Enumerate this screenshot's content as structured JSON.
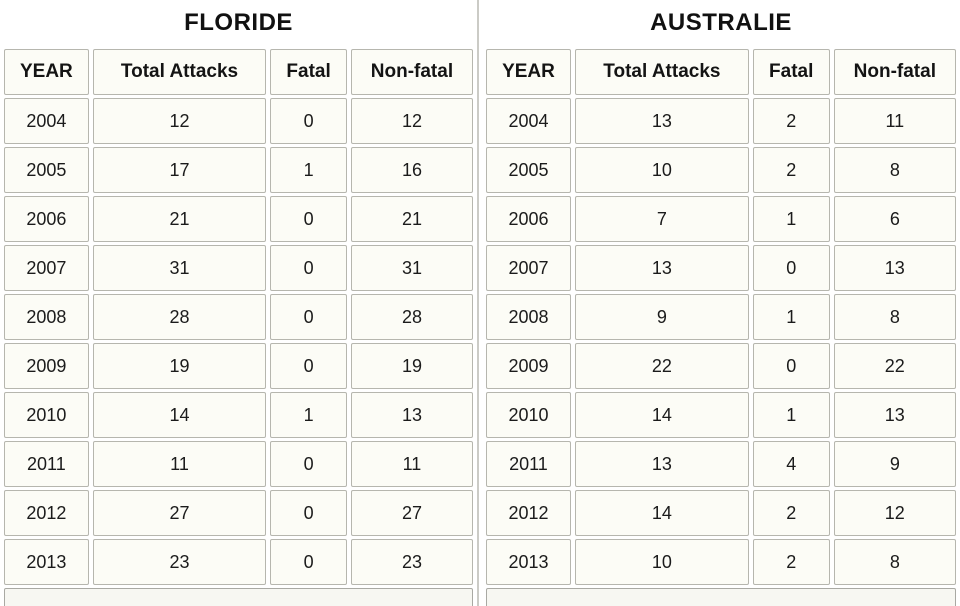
{
  "chart_data": [
    {
      "type": "table",
      "title": "FLORIDE",
      "columns": [
        "YEAR",
        "Total Attacks",
        "Fatal",
        "Non-fatal"
      ],
      "rows": [
        [
          "2004",
          "12",
          "0",
          "12"
        ],
        [
          "2005",
          "17",
          "1",
          "16"
        ],
        [
          "2006",
          "21",
          "0",
          "21"
        ],
        [
          "2007",
          "31",
          "0",
          "31"
        ],
        [
          "2008",
          "28",
          "0",
          "28"
        ],
        [
          "2009",
          "19",
          "0",
          "19"
        ],
        [
          "2010",
          "14",
          "1",
          "13"
        ],
        [
          "2011",
          "11",
          "0",
          "11"
        ],
        [
          "2012",
          "27",
          "0",
          "27"
        ],
        [
          "2013",
          "23",
          "0",
          "23"
        ]
      ]
    },
    {
      "type": "table",
      "title": "AUSTRALIE",
      "columns": [
        "YEAR",
        "Total Attacks",
        "Fatal",
        "Non-fatal"
      ],
      "rows": [
        [
          "2004",
          "13",
          "2",
          "11"
        ],
        [
          "2005",
          "10",
          "2",
          "8"
        ],
        [
          "2006",
          "7",
          "1",
          "6"
        ],
        [
          "2007",
          "13",
          "0",
          "13"
        ],
        [
          "2008",
          "9",
          "1",
          "8"
        ],
        [
          "2009",
          "22",
          "0",
          "22"
        ],
        [
          "2010",
          "14",
          "1",
          "13"
        ],
        [
          "2011",
          "13",
          "4",
          "9"
        ],
        [
          "2012",
          "14",
          "2",
          "12"
        ],
        [
          "2013",
          "10",
          "2",
          "8"
        ]
      ]
    }
  ],
  "colors": {
    "cell_border": "#b6b6ae",
    "cell_background": "#fcfcf6",
    "divider": "#cbcbc6",
    "text": "#1b1b1b"
  }
}
